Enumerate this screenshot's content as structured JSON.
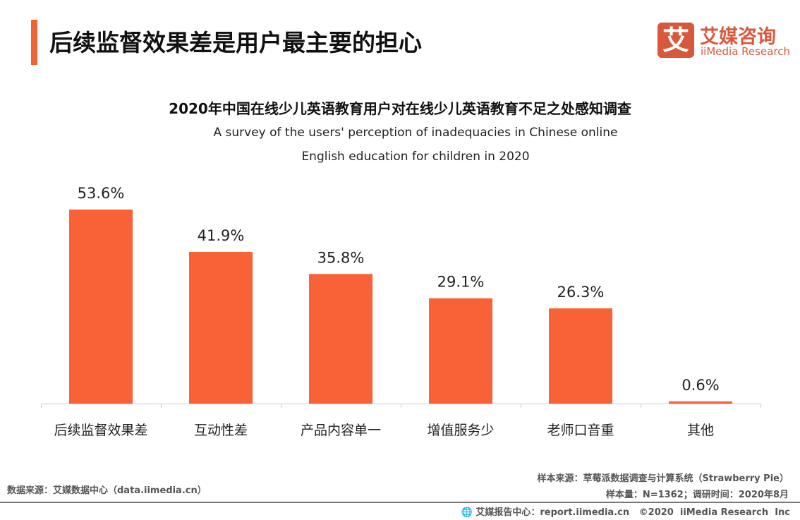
{
  "header": {
    "title": "后续监督效果差是用户最主要的担心",
    "logo_cn": "艾媒咨询",
    "logo_en": "iiMedia Research",
    "logo_mark": "艾"
  },
  "chart_data": {
    "type": "bar",
    "title": "2020年中国在线少儿英语教育用户对在线少儿英语教育不足之处感知调查",
    "subtitle_lines": [
      "A survey of the users' perception of inadequacies in Chinese online",
      "English education for children in 2020"
    ],
    "categories": [
      "后续监督效果差",
      "互动性差",
      "产品内容单一",
      "增值服务少",
      "老师口音重",
      "其他"
    ],
    "values": [
      53.6,
      41.9,
      35.8,
      29.1,
      26.3,
      0.6
    ],
    "value_labels": [
      "53.6%",
      "41.9%",
      "35.8%",
      "29.1%",
      "26.3%",
      "0.6%"
    ],
    "unit": "%",
    "bar_color": "#f96236",
    "grid": false
  },
  "footer": {
    "source_left": "数据来源：艾媒数据中心（data.iimedia.cn）",
    "sample_source": "样本来源：草莓派数据调查与计算系统（Strawberry Pie）",
    "sample_size": "样本量：N=1362；调研时间：2020年8月",
    "report_center": "艾媒报告中心：report.iimedia.cn   ©2020  iiMedia Research  Inc"
  }
}
